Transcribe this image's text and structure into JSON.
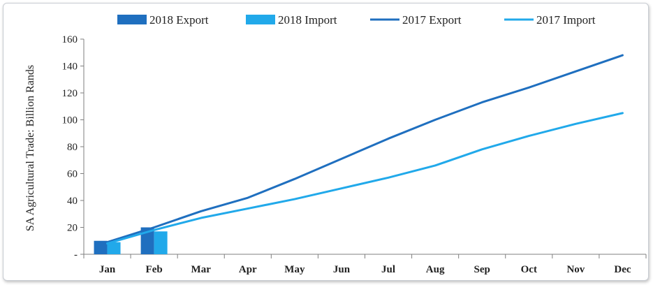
{
  "chart_data": {
    "type": "bar+line",
    "ylabel": "SA Agricultural Trade: Billion Rands",
    "xlabel": "",
    "ylim": [
      0,
      160
    ],
    "yticks": [
      0,
      20,
      40,
      60,
      80,
      100,
      120,
      140,
      160
    ],
    "ytick_labels": [
      "-",
      "20",
      "40",
      "60",
      "80",
      "100",
      "120",
      "140",
      "160"
    ],
    "categories": [
      "Jan",
      "Feb",
      "Mar",
      "Apr",
      "May",
      "Jun",
      "Jul",
      "Aug",
      "Sep",
      "Oct",
      "Nov",
      "Dec"
    ],
    "grid": false,
    "legend_position": "top",
    "bar_series": [
      {
        "name": "2018 Export",
        "color": "#1f6fbf",
        "values": [
          10,
          20
        ]
      },
      {
        "name": "2018 Import",
        "color": "#21a9ea",
        "values": [
          9,
          17
        ]
      }
    ],
    "line_series": [
      {
        "name": "2017 Export",
        "color": "#1f6fbf",
        "values": [
          9,
          20,
          32,
          42,
          56,
          71,
          86,
          100,
          113,
          124,
          136,
          148
        ]
      },
      {
        "name": "2017 Import",
        "color": "#21a9ea",
        "values": [
          8,
          18,
          27,
          34,
          41,
          49,
          57,
          66,
          78,
          88,
          97,
          105
        ]
      }
    ]
  }
}
